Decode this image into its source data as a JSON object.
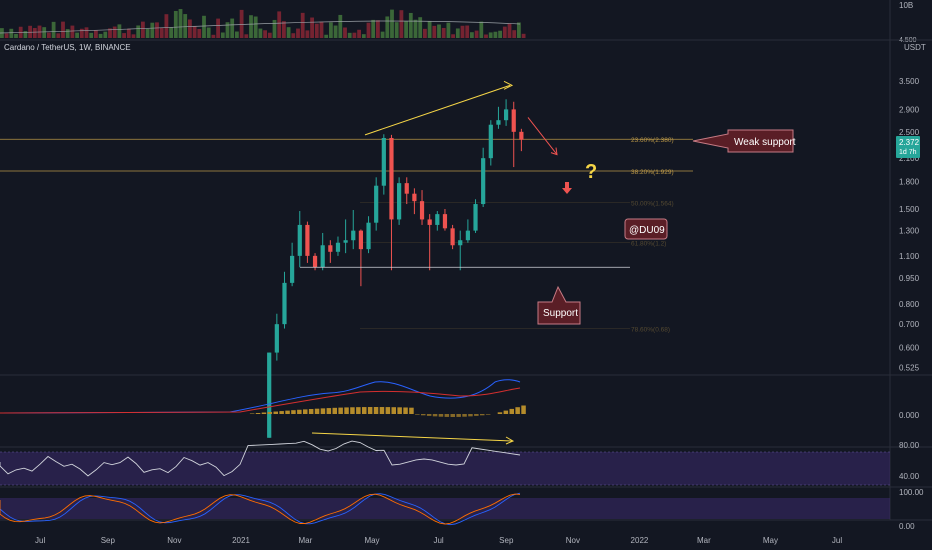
{
  "header": {
    "symbol": "Cardano / TetherUS, 1W, BINANCE",
    "quote_unit": "USDT"
  },
  "colors": {
    "background": "#131722",
    "up": "#26a69a",
    "down": "#ef5350",
    "annotation": "#f5d547",
    "fib_line": "#c8a24b",
    "macd_line": "#2962ff",
    "signal_line": "#d32f2f",
    "hist": "#b58c2b",
    "rsi_band": "#3a2a6b",
    "rsi_line": "#d1d4dc",
    "callout_bg": "#5a1e26",
    "callout_border": "#c77b85"
  },
  "annotations": {
    "weak_support": "Weak support",
    "support": "Support",
    "author": "@DU09",
    "question": "?"
  },
  "fib_levels": [
    {
      "label": "23.60%(2.380)",
      "price": 2.38
    },
    {
      "label": "38.20%(1.929)",
      "price": 1.929
    },
    {
      "label": "50.00%(1.564)",
      "price": 1.564
    },
    {
      "label": "61.80%(1.2)",
      "price": 1.2
    },
    {
      "label": "78.60%(0.68)",
      "price": 0.68
    }
  ],
  "last_price": {
    "value": "2.372",
    "countdown": "1d 7h"
  },
  "chart_data": [
    {
      "type": "candlestick",
      "title": "Cardano / TetherUS, 1W, BINANCE",
      "ylabel": "USDT",
      "y_scale": "log",
      "ylim": [
        0.5,
        4.5
      ],
      "y_ticks": [
        "4.500",
        "3.500",
        "2.900",
        "2.500",
        "2.100",
        "1.800",
        "1.500",
        "1.300",
        "1.100",
        "0.950",
        "0.800",
        "0.700",
        "0.600",
        "0.525"
      ],
      "x_ticks": [
        "Jul",
        "Sep",
        "Nov",
        "2021",
        "Mar",
        "May",
        "Jul",
        "Sep",
        "Nov",
        "2022",
        "Mar",
        "May",
        "Jul"
      ],
      "candles": [
        {
          "week": "2021-01-25",
          "o": 0.33,
          "h": 0.58,
          "l": 0.33,
          "c": 0.58
        },
        {
          "week": "2021-02-01",
          "o": 0.58,
          "h": 0.75,
          "l": 0.55,
          "c": 0.7
        },
        {
          "week": "2021-02-08",
          "o": 0.7,
          "h": 0.99,
          "l": 0.68,
          "c": 0.92
        },
        {
          "week": "2021-02-15",
          "o": 0.92,
          "h": 1.2,
          "l": 0.9,
          "c": 1.1
        },
        {
          "week": "2021-02-22",
          "o": 1.1,
          "h": 1.48,
          "l": 1.02,
          "c": 1.35
        },
        {
          "week": "2021-03-01",
          "o": 1.35,
          "h": 1.38,
          "l": 1.05,
          "c": 1.1
        },
        {
          "week": "2021-03-08",
          "o": 1.1,
          "h": 1.12,
          "l": 1.0,
          "c": 1.02
        },
        {
          "week": "2021-03-15",
          "o": 1.02,
          "h": 1.28,
          "l": 1.0,
          "c": 1.18
        },
        {
          "week": "2021-03-22",
          "o": 1.18,
          "h": 1.22,
          "l": 1.05,
          "c": 1.13
        },
        {
          "week": "2021-03-29",
          "o": 1.13,
          "h": 1.25,
          "l": 1.1,
          "c": 1.2
        },
        {
          "week": "2021-04-05",
          "o": 1.2,
          "h": 1.4,
          "l": 1.12,
          "c": 1.22
        },
        {
          "week": "2021-04-12",
          "o": 1.22,
          "h": 1.49,
          "l": 1.15,
          "c": 1.3
        },
        {
          "week": "2021-04-19",
          "o": 1.3,
          "h": 1.31,
          "l": 0.9,
          "c": 1.15
        },
        {
          "week": "2021-04-26",
          "o": 1.15,
          "h": 1.43,
          "l": 1.12,
          "c": 1.37
        },
        {
          "week": "2021-05-03",
          "o": 1.37,
          "h": 1.85,
          "l": 1.3,
          "c": 1.75
        },
        {
          "week": "2021-05-10",
          "o": 1.75,
          "h": 2.46,
          "l": 1.65,
          "c": 2.4
        },
        {
          "week": "2021-05-17",
          "o": 2.4,
          "h": 2.45,
          "l": 1.0,
          "c": 1.4
        },
        {
          "week": "2021-05-24",
          "o": 1.4,
          "h": 1.85,
          "l": 1.35,
          "c": 1.78
        },
        {
          "week": "2021-05-31",
          "o": 1.78,
          "h": 1.85,
          "l": 1.55,
          "c": 1.66
        },
        {
          "week": "2021-06-07",
          "o": 1.66,
          "h": 1.72,
          "l": 1.45,
          "c": 1.58
        },
        {
          "week": "2021-06-14",
          "o": 1.58,
          "h": 1.7,
          "l": 1.35,
          "c": 1.4
        },
        {
          "week": "2021-06-21",
          "o": 1.4,
          "h": 1.45,
          "l": 1.0,
          "c": 1.35
        },
        {
          "week": "2021-06-28",
          "o": 1.35,
          "h": 1.48,
          "l": 1.3,
          "c": 1.45
        },
        {
          "week": "2021-07-05",
          "o": 1.45,
          "h": 1.5,
          "l": 1.3,
          "c": 1.32
        },
        {
          "week": "2021-07-12",
          "o": 1.32,
          "h": 1.35,
          "l": 1.15,
          "c": 1.18
        },
        {
          "week": "2021-07-19",
          "o": 1.18,
          "h": 1.3,
          "l": 1.0,
          "c": 1.22
        },
        {
          "week": "2021-07-26",
          "o": 1.22,
          "h": 1.4,
          "l": 1.2,
          "c": 1.3
        },
        {
          "week": "2021-08-02",
          "o": 1.3,
          "h": 1.6,
          "l": 1.28,
          "c": 1.55
        },
        {
          "week": "2021-08-09",
          "o": 1.55,
          "h": 2.25,
          "l": 1.52,
          "c": 2.1
        },
        {
          "week": "2021-08-16",
          "o": 2.1,
          "h": 2.7,
          "l": 2.0,
          "c": 2.62
        },
        {
          "week": "2021-08-23",
          "o": 2.62,
          "h": 2.95,
          "l": 2.55,
          "c": 2.7
        },
        {
          "week": "2021-08-30",
          "o": 2.7,
          "h": 3.1,
          "l": 2.6,
          "c": 2.9
        },
        {
          "week": "2021-09-06",
          "o": 2.9,
          "h": 3.05,
          "l": 1.98,
          "c": 2.5
        },
        {
          "week": "2021-09-13",
          "o": 2.5,
          "h": 2.55,
          "l": 2.2,
          "c": 2.372
        }
      ]
    },
    {
      "type": "bar",
      "title": "Volume",
      "y_ticks": [
        "10B",
        "4.500"
      ]
    },
    {
      "type": "line",
      "title": "MACD",
      "y_ticks": [
        "0.000"
      ]
    },
    {
      "type": "line",
      "title": "RSI",
      "y_ticks": [
        "80.00",
        "40.00"
      ]
    },
    {
      "type": "line",
      "title": "Stochastic RSI",
      "y_ticks": [
        "100.00",
        "0.00"
      ]
    }
  ]
}
